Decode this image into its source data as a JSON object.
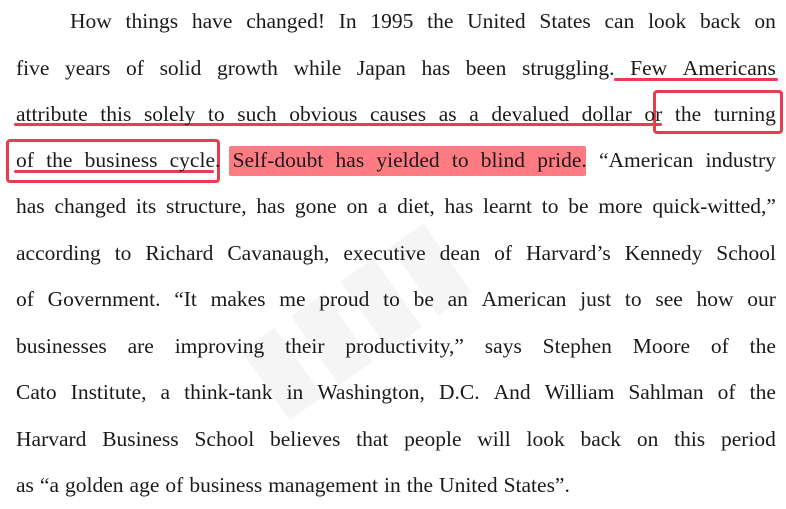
{
  "annotation_colors": {
    "underline": "#ea3c50",
    "box": "#ea3c50",
    "highlight": "#ff5660"
  },
  "paragraph": {
    "lines": [
      [
        "How",
        "things",
        "have",
        "changed!",
        "In",
        "1995",
        "the",
        "United",
        "States",
        "can",
        "look",
        "back",
        "on"
      ],
      [
        "five",
        "years",
        "of",
        "solid",
        "growth",
        "while",
        "Japan",
        "has",
        "been",
        "struggling.",
        "Few",
        "Americans"
      ],
      [
        "attribute",
        "this",
        "solely",
        "to",
        "such",
        "obvious",
        "causes",
        "as",
        "a",
        "devalued",
        "dollar",
        "or",
        "the",
        "turning"
      ],
      [
        "of",
        "the",
        "business",
        "cycle.",
        "Self-doubt",
        "has",
        "yielded",
        "to",
        "blind",
        "pride.",
        "“American",
        "industry"
      ],
      [
        "has",
        "changed",
        "its",
        "structure,",
        "has",
        "gone",
        "on",
        "a",
        "diet,",
        "has",
        "learnt",
        "to",
        "be",
        "more",
        "quick-witted,”"
      ],
      [
        "according",
        "to",
        "Richard",
        "Cavanaugh,",
        "executive",
        "dean",
        "of",
        "Harvard’s",
        "Kennedy",
        "School"
      ],
      [
        "of",
        "Government.",
        "“It",
        "makes",
        "me",
        "proud",
        "to",
        "be",
        "an",
        "American",
        "just",
        "to",
        "see",
        "how",
        "our"
      ],
      [
        "businesses",
        "are",
        "improving",
        "their",
        "productivity,”",
        "says",
        "Stephen",
        "Moore",
        "of",
        "the"
      ],
      [
        "Cato",
        "Institute,",
        "a",
        "think-tank",
        "in",
        "Washington,",
        "D.C.",
        "And",
        "William",
        "Sahlman",
        "of",
        "the"
      ],
      [
        "Harvard",
        "Business",
        "School",
        "believes",
        "that",
        "people",
        "will",
        "look",
        "back",
        "on",
        "this",
        "period"
      ],
      [
        "as",
        "“a",
        "golden",
        "age",
        "of",
        "business",
        "management",
        "in",
        "the",
        "United",
        "States”."
      ]
    ]
  }
}
